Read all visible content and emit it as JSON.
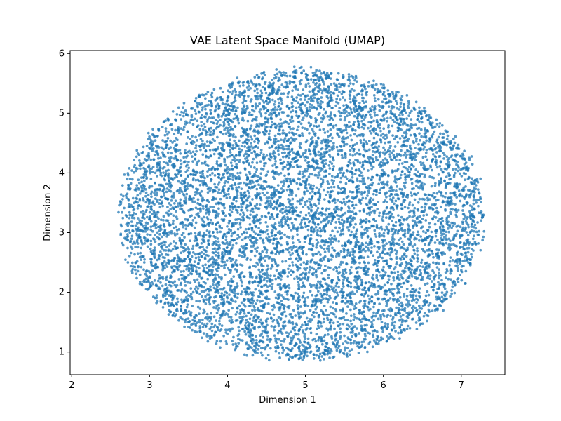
{
  "chart_data": {
    "type": "scatter",
    "title": "VAE Latent Space Manifold (UMAP)",
    "xlabel": "Dimension 1",
    "ylabel": "Dimension 2",
    "xlim": [
      1.98,
      7.56
    ],
    "ylim": [
      0.62,
      6.05
    ],
    "xticks": [
      2,
      3,
      4,
      5,
      6,
      7
    ],
    "yticks": [
      1,
      2,
      3,
      4,
      5,
      6
    ],
    "grid": false,
    "legend": "none",
    "point_color": "#1f77b4",
    "point_alpha": 0.75,
    "point_count": 8000,
    "distribution": {
      "shape": "bounded elliptical cloud",
      "center": [
        4.95,
        3.3
      ],
      "radius_x": 2.35,
      "radius_y": 2.45,
      "x_extent": [
        2.2,
        7.3
      ],
      "y_extent": [
        0.85,
        5.8
      ]
    }
  }
}
